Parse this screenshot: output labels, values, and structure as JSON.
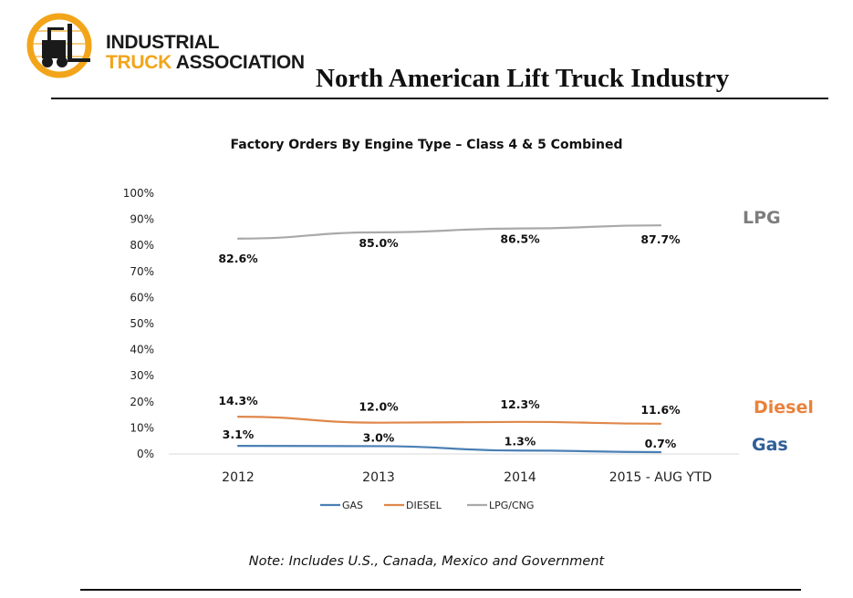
{
  "header": {
    "logo_line1": "INDUSTRIAL",
    "logo_line2_accent": "TRUCK",
    "logo_line2_rest": " ASSOCIATION",
    "title": "North American Lift Truck Industry"
  },
  "colors": {
    "gas": "#4a7fb5",
    "diesel": "#e0874a",
    "lpg": "#a9a9a9",
    "gas_label": "#2f5f96",
    "diesel_label": "#e9823c",
    "lpg_label": "#7d7d7d",
    "logo_accent": "#f2a51a"
  },
  "chart_data": {
    "type": "line",
    "title": "Factory Orders By Engine Type – Class 4 & 5 Combined",
    "categories": [
      "2012",
      "2013",
      "2014",
      "2015 - AUG YTD"
    ],
    "series": [
      {
        "name": "GAS",
        "key": "gas",
        "values": [
          3.1,
          3.0,
          1.3,
          0.7
        ],
        "labels": [
          "3.1%",
          "3.0%",
          "1.3%",
          "0.7%"
        ]
      },
      {
        "name": "DIESEL",
        "key": "diesel",
        "values": [
          14.3,
          12.0,
          12.3,
          11.6
        ],
        "labels": [
          "14.3%",
          "12.0%",
          "12.3%",
          "11.6%"
        ]
      },
      {
        "name": "LPG/CNG",
        "key": "lpg",
        "values": [
          82.6,
          85.0,
          86.5,
          87.7
        ],
        "labels": [
          "82.6%",
          "85.0%",
          "86.5%",
          "87.7%"
        ]
      }
    ],
    "y_ticks": [
      "0%",
      "10%",
      "20%",
      "30%",
      "40%",
      "50%",
      "60%",
      "70%",
      "80%",
      "90%",
      "100%"
    ],
    "ylim": [
      0,
      100
    ],
    "grid": false,
    "legend_position": "bottom",
    "side_labels": [
      {
        "text": "LPG",
        "series": "lpg"
      },
      {
        "text": "Diesel",
        "series": "diesel"
      },
      {
        "text": "Gas",
        "series": "gas"
      }
    ]
  },
  "note": "Note: Includes U.S., Canada, Mexico and Government"
}
